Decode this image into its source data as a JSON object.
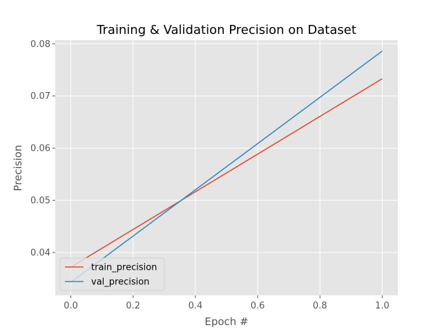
{
  "chart_data": {
    "type": "line",
    "title": "Training & Validation Precision on Dataset",
    "xlabel": "Epoch #",
    "ylabel": "Precision",
    "xlim": [
      -0.05,
      1.05
    ],
    "ylim": [
      0.0318,
      0.0807
    ],
    "xticks": [
      "0.0",
      "0.2",
      "0.4",
      "0.6",
      "0.8",
      "1.0"
    ],
    "yticks": [
      "0.04",
      "0.05",
      "0.06",
      "0.07",
      "0.08"
    ],
    "grid": true,
    "legend_position": "lower-left",
    "series": [
      {
        "name": "train_precision",
        "color": "#E24A33",
        "x": [
          0,
          1
        ],
        "y": [
          0.0372,
          0.0733
        ]
      },
      {
        "name": "val_precision",
        "color": "#348ABD",
        "x": [
          0,
          1
        ],
        "y": [
          0.0343,
          0.0786
        ]
      }
    ]
  }
}
